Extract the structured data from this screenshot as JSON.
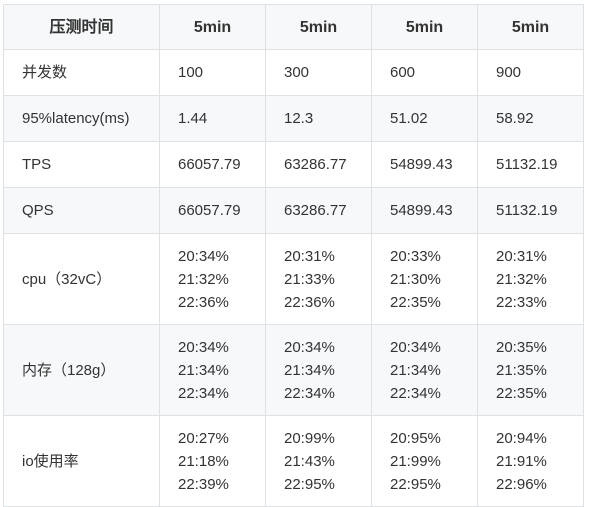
{
  "table": {
    "headers": [
      "压测时间",
      "5min",
      "5min",
      "5min",
      "5min"
    ],
    "rows": [
      {
        "label": "并发数",
        "cells": [
          [
            "100"
          ],
          [
            "300"
          ],
          [
            "600"
          ],
          [
            "900"
          ]
        ]
      },
      {
        "label": "95%latency(ms)",
        "cells": [
          [
            "1.44"
          ],
          [
            "12.3"
          ],
          [
            "51.02"
          ],
          [
            "58.92"
          ]
        ]
      },
      {
        "label": "TPS",
        "cells": [
          [
            "66057.79"
          ],
          [
            "63286.77"
          ],
          [
            "54899.43"
          ],
          [
            "51132.19"
          ]
        ]
      },
      {
        "label": "QPS",
        "cells": [
          [
            "66057.79"
          ],
          [
            "63286.77"
          ],
          [
            "54899.43"
          ],
          [
            "51132.19"
          ]
        ]
      },
      {
        "label": "cpu（32vC）",
        "cells": [
          [
            "20:34%",
            "21:32%",
            "22:36%"
          ],
          [
            "20:31%",
            "21:33%",
            "22:36%"
          ],
          [
            "20:33%",
            "21:30%",
            "22:35%"
          ],
          [
            "20:31%",
            "21:32%",
            "22:33%"
          ]
        ]
      },
      {
        "label": "内存（128g）",
        "cells": [
          [
            "20:34%",
            "21:34%",
            "22:34%"
          ],
          [
            "20:34%",
            "21:34%",
            "22:34%"
          ],
          [
            "20:34%",
            "21:34%",
            "22:34%"
          ],
          [
            "20:35%",
            "21:35%",
            "22:35%"
          ]
        ]
      },
      {
        "label": "io使用率",
        "cells": [
          [
            "20:27%",
            "21:18%",
            "22:39%"
          ],
          [
            "20:99%",
            "21:43%",
            "22:95%"
          ],
          [
            "20:95%",
            "21:99%",
            "22:95%"
          ],
          [
            "20:94%",
            "21:91%",
            "22:96%"
          ]
        ]
      }
    ]
  }
}
